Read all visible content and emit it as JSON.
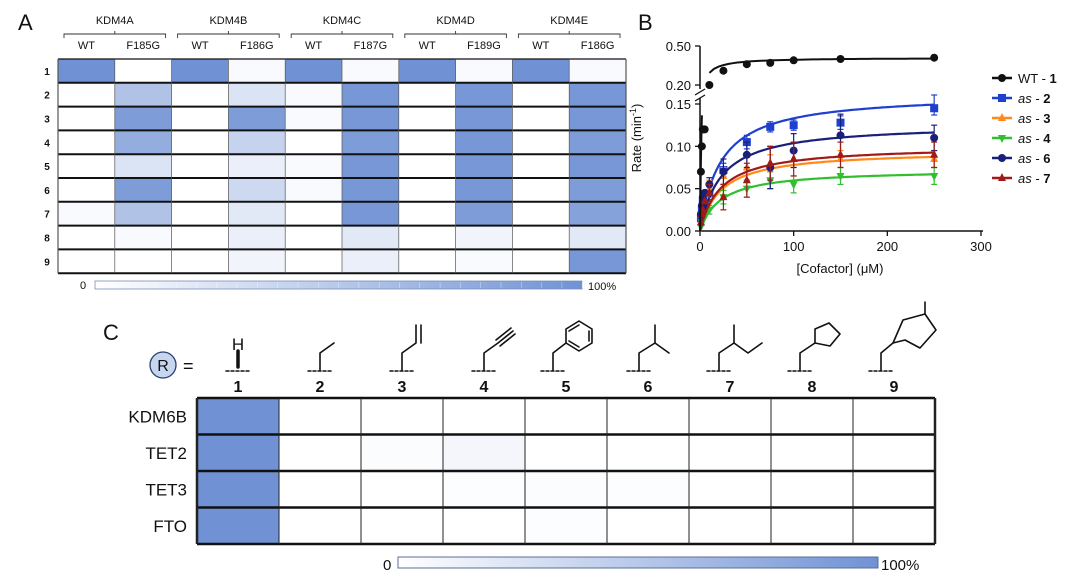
{
  "panels": {
    "a": "A",
    "b": "B",
    "c": "C"
  },
  "colors": {
    "full": "#7092d4",
    "empty": "#ffffff",
    "grid": "#111111"
  },
  "chart_data": [
    {
      "type": "heatmap",
      "panel": "A",
      "groups": [
        "KDM4A",
        "KDM4B",
        "KDM4C",
        "KDM4D",
        "KDM4E"
      ],
      "columns": [
        {
          "group": "KDM4A",
          "label": "WT"
        },
        {
          "group": "KDM4A",
          "label": "F185G"
        },
        {
          "group": "KDM4B",
          "label": "WT"
        },
        {
          "group": "KDM4B",
          "label": "F186G"
        },
        {
          "group": "KDM4C",
          "label": "WT"
        },
        {
          "group": "KDM4C",
          "label": "F187G"
        },
        {
          "group": "KDM4D",
          "label": "WT"
        },
        {
          "group": "KDM4D",
          "label": "F189G"
        },
        {
          "group": "KDM4E",
          "label": "WT"
        },
        {
          "group": "KDM4E",
          "label": "F186G"
        }
      ],
      "rows": [
        "1",
        "2",
        "3",
        "4",
        "5",
        "6",
        "7",
        "8",
        "9"
      ],
      "values": [
        [
          100,
          0,
          100,
          5,
          100,
          5,
          100,
          5,
          100,
          5
        ],
        [
          0,
          55,
          0,
          25,
          5,
          95,
          0,
          95,
          0,
          95
        ],
        [
          0,
          90,
          0,
          90,
          5,
          95,
          0,
          95,
          0,
          95
        ],
        [
          0,
          75,
          0,
          40,
          0,
          90,
          0,
          95,
          0,
          90
        ],
        [
          0,
          25,
          0,
          15,
          5,
          95,
          0,
          95,
          0,
          95
        ],
        [
          0,
          90,
          0,
          35,
          5,
          95,
          0,
          95,
          0,
          90
        ],
        [
          5,
          55,
          0,
          20,
          0,
          95,
          0,
          90,
          0,
          85
        ],
        [
          0,
          5,
          0,
          15,
          0,
          20,
          0,
          10,
          0,
          20
        ],
        [
          0,
          0,
          0,
          10,
          0,
          15,
          0,
          5,
          0,
          95
        ]
      ],
      "scale": {
        "min_label": "0",
        "max_label": "100%"
      }
    },
    {
      "type": "line",
      "panel": "B",
      "xlabel_prefix": "[Cofactor] (",
      "xlabel_unit": "μM",
      "xlabel_suffix": ")",
      "ylabel": "Rate (min",
      "ylabel_exp": "-1",
      "ylabel_end": ")",
      "xlim": [
        0,
        300
      ],
      "xticks": [
        0,
        100,
        200,
        300
      ],
      "ylim_lower": [
        0,
        0.15
      ],
      "yticks_lower": [
        "0.00",
        "0.05",
        "0.10",
        "0.15"
      ],
      "ylim_upper": [
        0.2,
        0.5
      ],
      "yticks_upper": [
        "0.20",
        "0.50"
      ],
      "series": [
        {
          "name": "WT",
          "num": "1",
          "italic": false,
          "color": "#111111",
          "marker": "circle",
          "x": [
            1,
            2,
            3,
            5,
            10,
            25,
            50,
            75,
            100,
            150,
            250
          ],
          "y": [
            0.07,
            0.1,
            0.12,
            0.12,
            0.2,
            0.31,
            0.36,
            0.37,
            0.39,
            0.4,
            0.41
          ],
          "err": [
            0,
            0,
            0,
            0,
            0,
            0,
            0,
            0,
            0,
            0,
            0
          ]
        },
        {
          "name": "as",
          "num": "2",
          "italic": true,
          "color": "#1f3fcf",
          "marker": "square",
          "x": [
            1,
            2,
            3,
            5,
            10,
            25,
            50,
            75,
            100,
            150,
            250
          ],
          "y": [
            0.015,
            0.025,
            0.035,
            0.03,
            0.045,
            0.072,
            0.105,
            0.123,
            0.125,
            0.128,
            0.145
          ],
          "err": [
            0,
            0,
            0,
            0,
            0.008,
            0.008,
            0.008,
            0.006,
            0.006,
            0.008,
            0.008
          ]
        },
        {
          "name": "as",
          "num": "3",
          "italic": true,
          "color": "#ff8a1a",
          "marker": "triangle-up",
          "x": [
            1,
            2,
            3,
            5,
            10,
            25,
            50,
            75,
            100,
            150,
            250
          ],
          "y": [
            0.01,
            0.02,
            0.03,
            0.035,
            0.05,
            0.065,
            0.075,
            0.08,
            0.085,
            0.085,
            0.085
          ],
          "err": [
            0,
            0,
            0,
            0,
            0.01,
            0.01,
            0.015,
            0.01,
            0.01,
            0.01,
            0.01
          ]
        },
        {
          "name": "as",
          "num": "4",
          "italic": true,
          "color": "#2fbf2f",
          "marker": "triangle-down",
          "x": [
            1,
            2,
            3,
            5,
            10,
            25,
            50,
            75,
            100,
            150,
            250
          ],
          "y": [
            0.005,
            0.01,
            0.015,
            0.02,
            0.025,
            0.04,
            0.05,
            0.06,
            0.055,
            0.065,
            0.065
          ],
          "err": [
            0,
            0,
            0,
            0,
            0.005,
            0.008,
            0.01,
            0.01,
            0.01,
            0.01,
            0.01
          ]
        },
        {
          "name": "as",
          "num": "6",
          "italic": true,
          "color": "#1a1f7a",
          "marker": "circle",
          "x": [
            1,
            2,
            3,
            5,
            10,
            25,
            50,
            75,
            100,
            150,
            250
          ],
          "y": [
            0.02,
            0.03,
            0.04,
            0.045,
            0.055,
            0.07,
            0.09,
            0.075,
            0.095,
            0.113,
            0.11
          ],
          "err": [
            0,
            0,
            0,
            0,
            0.008,
            0.015,
            0.015,
            0.025,
            0.02,
            0.025,
            0.015
          ]
        },
        {
          "name": "as",
          "num": "7",
          "italic": true,
          "color": "#a01a1a",
          "marker": "triangle-up",
          "x": [
            1,
            2,
            3,
            5,
            10,
            25,
            50,
            75,
            100,
            150,
            250
          ],
          "y": [
            0.01,
            0.02,
            0.025,
            0.035,
            0.045,
            0.04,
            0.06,
            0.08,
            0.085,
            0.09,
            0.09
          ],
          "err": [
            0,
            0,
            0,
            0,
            0.01,
            0.015,
            0.02,
            0.02,
            0.02,
            0.015,
            0.015
          ]
        }
      ]
    },
    {
      "type": "heatmap",
      "panel": "C",
      "r_symbol": "R",
      "equals": "=",
      "h_label": "H",
      "columns": [
        "1",
        "2",
        "3",
        "4",
        "5",
        "6",
        "7",
        "8",
        "9"
      ],
      "rows": [
        "KDM6B",
        "TET2",
        "TET3",
        "FTO"
      ],
      "values": [
        [
          100,
          0,
          0,
          0,
          0,
          0,
          0,
          0,
          0
        ],
        [
          100,
          0,
          3,
          8,
          0,
          0,
          0,
          0,
          0
        ],
        [
          100,
          0,
          0,
          2,
          3,
          2,
          0,
          0,
          0
        ],
        [
          100,
          0,
          0,
          0,
          2,
          0,
          0,
          0,
          0
        ]
      ],
      "scale": {
        "min_label": "0",
        "max_label": "100%"
      }
    }
  ]
}
